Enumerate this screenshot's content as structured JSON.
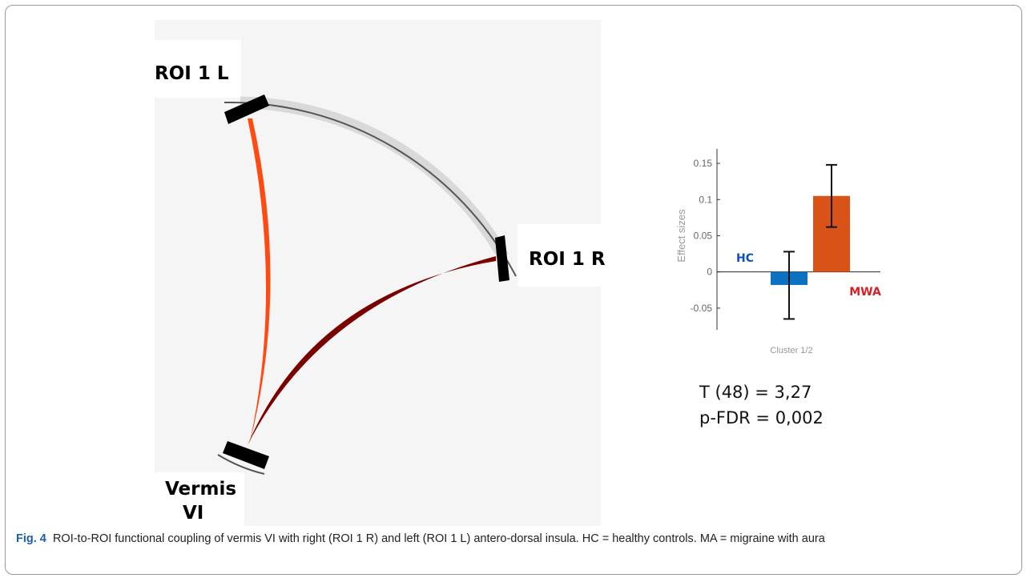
{
  "connectivity": {
    "rois": [
      {
        "id": "roi1l",
        "label": "ROI 1 L"
      },
      {
        "id": "roi1r",
        "label": "ROI 1 R"
      },
      {
        "id": "vermis",
        "label_lines": [
          "Vermis",
          "VI"
        ]
      }
    ],
    "connections": [
      {
        "from": "ROI 1 L",
        "to": "Vermis VI",
        "color": "#ff4a14"
      },
      {
        "from": "ROI 1 R",
        "to": "Vermis VI",
        "color": "#7a0000"
      }
    ],
    "colors": {
      "ring": "#d9d9d9",
      "roi_block": "#000000",
      "background": "#f5f5f5"
    }
  },
  "chart_data": {
    "type": "bar",
    "categories": [
      "HC",
      "MWA"
    ],
    "values": [
      -0.018,
      0.105
    ],
    "errors": [
      [
        -0.065,
        0.028
      ],
      [
        0.062,
        0.148
      ]
    ],
    "colors": [
      "#0c71c3",
      "#d95319"
    ],
    "category_label_colors": [
      "#0c53b5",
      "#d92027"
    ],
    "ylabel": "Effect sizes",
    "xlabel": "Cluster 1/2",
    "ylim": [
      -0.08,
      0.17
    ],
    "yticks": [
      0.15,
      0.1,
      0.05,
      0,
      -0.05
    ],
    "ytick_labels": [
      "0.15",
      "0.1",
      "0.05",
      "0",
      "-0.05"
    ]
  },
  "stats": {
    "t_line": "T (48) = 3,27",
    "p_line": "p-FDR = 0,002"
  },
  "caption": {
    "label": "Fig. 4",
    "text": "ROI-to-ROI functional coupling of vermis VI with right (ROI 1 R) and left (ROI 1 L) antero-dorsal insula. HC = healthy controls. MA = migraine with aura"
  }
}
